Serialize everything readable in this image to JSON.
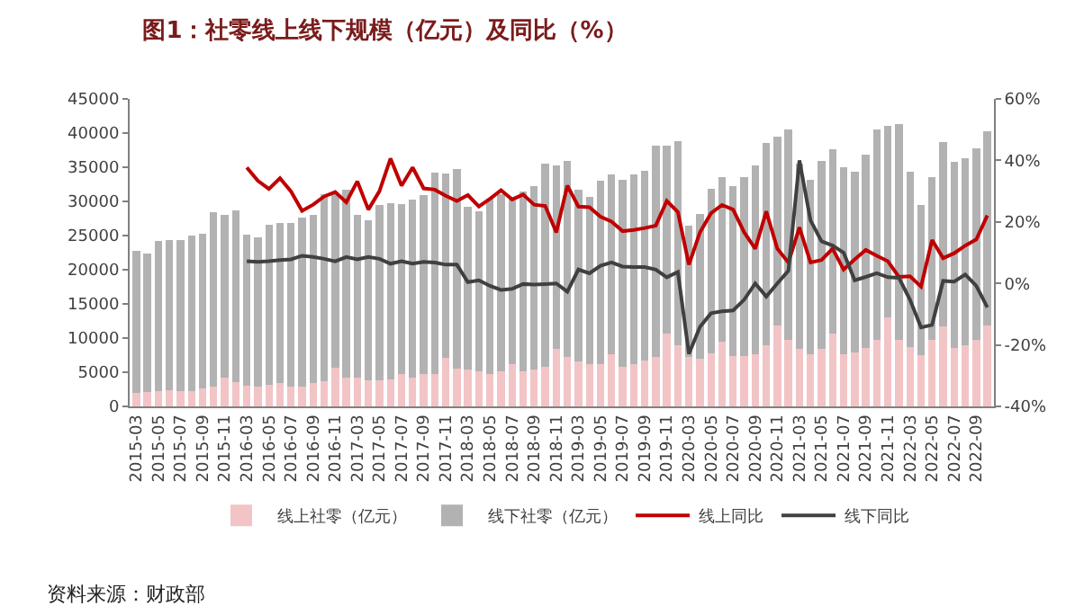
{
  "chart_data": {
    "type": "bar",
    "title": "图1：社零线上线下规模（亿元）及同比（%）",
    "categories": [
      "2015-03",
      null,
      "2015-05",
      null,
      "2015-07",
      null,
      "2015-09",
      null,
      "2015-11",
      null,
      "2016-03",
      null,
      "2016-05",
      null,
      "2016-07",
      null,
      "2016-09",
      null,
      "2016-11",
      null,
      "2017-03",
      null,
      "2017-05",
      null,
      "2017-07",
      null,
      "2017-09",
      null,
      "2017-11",
      null,
      "2018-03",
      null,
      "2018-05",
      null,
      "2018-07",
      null,
      "2018-09",
      null,
      "2018-11",
      null,
      "2019-03",
      null,
      "2019-05",
      null,
      "2019-07",
      null,
      "2019-09",
      null,
      "2019-11",
      null,
      "2020-03",
      null,
      "2020-05",
      null,
      "2020-07",
      null,
      "2020-09",
      null,
      "2020-11",
      null,
      "2021-03",
      null,
      "2021-05",
      null,
      "2021-07",
      null,
      "2021-09",
      null,
      "2021-11",
      null,
      "2022-03",
      null,
      "2022-05",
      null,
      "2022-07",
      null,
      "2022-09",
      null
    ],
    "stacked": true,
    "series": [
      {
        "name": "线上社零（亿元）",
        "color": "#f2c4c6",
        "values": [
          2000,
          2100,
          2300,
          2400,
          2200,
          2300,
          2600,
          2900,
          4200,
          3500,
          3000,
          2900,
          3200,
          3400,
          2900,
          2900,
          3400,
          3700,
          5600,
          4200,
          4200,
          3800,
          3800,
          4000,
          4700,
          4200,
          4700,
          4700,
          7100,
          5500,
          5400,
          5100,
          4800,
          5100,
          6200,
          5100,
          5400,
          5800,
          8400,
          7300,
          6600,
          6200,
          6200,
          7600,
          5800,
          6200,
          6700,
          7200,
          10700,
          9000,
          7200,
          7000,
          7800,
          9500,
          7400,
          7400,
          7600,
          9000,
          11900,
          9700,
          8400,
          7600,
          8400,
          10700,
          7600,
          7900,
          8500,
          9700,
          13000,
          9700,
          8700,
          7500,
          9700,
          11700,
          8500,
          9000,
          9700,
          11900
        ]
      },
      {
        "name": "线下社零（亿元）",
        "color": "#b2b2b2",
        "values": [
          20700,
          20300,
          21900,
          21900,
          22200,
          22700,
          22700,
          25500,
          23800,
          25200,
          22100,
          21800,
          23400,
          23500,
          23900,
          24700,
          24600,
          27300,
          25400,
          27500,
          23800,
          23500,
          25700,
          25800,
          24900,
          26100,
          26200,
          29500,
          27000,
          29300,
          23800,
          23400,
          25600,
          25900,
          24500,
          26400,
          26800,
          29700,
          26900,
          28600,
          25100,
          24400,
          26800,
          26300,
          27300,
          27700,
          27800,
          30900,
          27400,
          29800,
          19200,
          21200,
          24100,
          24000,
          24800,
          26200,
          27700,
          29500,
          27600,
          30800,
          27100,
          25600,
          27500,
          26900,
          27400,
          26500,
          28400,
          30800,
          28100,
          31600,
          25600,
          22000,
          23900,
          27000,
          27300,
          27300,
          28000,
          28300
        ]
      },
      {
        "name": "线上同比",
        "type": "line",
        "axis": "y2",
        "color": "#c00000",
        "values": [
          null,
          null,
          null,
          null,
          null,
          null,
          null,
          null,
          null,
          null,
          37.7,
          33.4,
          30.7,
          34.2,
          29.9,
          23.6,
          25.6,
          28.3,
          29.7,
          26.4,
          33.2,
          24.0,
          30.0,
          40.6,
          31.8,
          37.7,
          30.9,
          30.5,
          28.5,
          26.8,
          28.7,
          25.0,
          27.5,
          30.3,
          27.3,
          28.9,
          25.6,
          25.2,
          16.6,
          31.8,
          25.0,
          24.8,
          21.7,
          20.1,
          17.0,
          17.4,
          18.0,
          18.8,
          26.8,
          23.2,
          6.1,
          16.6,
          22.8,
          25.5,
          24.0,
          16.6,
          11.3,
          23.4,
          11.3,
          6.8,
          18.2,
          6.8,
          7.6,
          11.3,
          4.5,
          7.8,
          10.9,
          9.0,
          7.2,
          2.1,
          2.3,
          -1.0,
          14.1,
          8.2,
          9.8,
          12.3,
          14.3,
          22.1
        ]
      },
      {
        "name": "线下同比",
        "type": "line",
        "axis": "y2",
        "color": "#404040",
        "values": [
          null,
          null,
          null,
          null,
          null,
          null,
          null,
          null,
          null,
          null,
          7.2,
          7.0,
          7.2,
          7.6,
          7.8,
          9.0,
          8.6,
          8.0,
          7.2,
          8.6,
          7.8,
          8.6,
          8.0,
          6.4,
          7.2,
          6.4,
          7.0,
          6.8,
          6.1,
          6.1,
          0.4,
          1.0,
          -0.8,
          -2.1,
          -1.8,
          -0.2,
          -0.4,
          -0.2,
          0.0,
          -2.7,
          4.5,
          3.3,
          5.7,
          6.8,
          5.5,
          5.3,
          5.3,
          4.5,
          2.0,
          3.7,
          -22.9,
          -14.1,
          -9.7,
          -9.1,
          -8.8,
          -5.3,
          0.0,
          -4.3,
          0.0,
          4.1,
          40.0,
          20.5,
          13.7,
          12.3,
          10.0,
          1.0,
          2.1,
          3.3,
          2.0,
          1.8,
          -5.3,
          -14.3,
          -13.5,
          0.8,
          0.6,
          2.9,
          -0.8,
          -7.8
        ]
      }
    ],
    "ylim": [
      0,
      45000
    ],
    "yticks": [
      0,
      5000,
      10000,
      15000,
      20000,
      25000,
      30000,
      35000,
      40000,
      45000
    ],
    "y2lim": [
      -40,
      60
    ],
    "y2ticks": [
      {
        "value": -40,
        "label": "-40%"
      },
      {
        "value": -20,
        "label": "-20%"
      },
      {
        "value": 0,
        "label": "0%"
      },
      {
        "value": 20,
        "label": "20%"
      },
      {
        "value": 40,
        "label": "40%"
      },
      {
        "value": 60,
        "label": "60%"
      }
    ],
    "legend": "bottom",
    "grid": false,
    "marker": "none",
    "line_style": "solid",
    "annotations": [
      "资料来源：财政部"
    ]
  }
}
